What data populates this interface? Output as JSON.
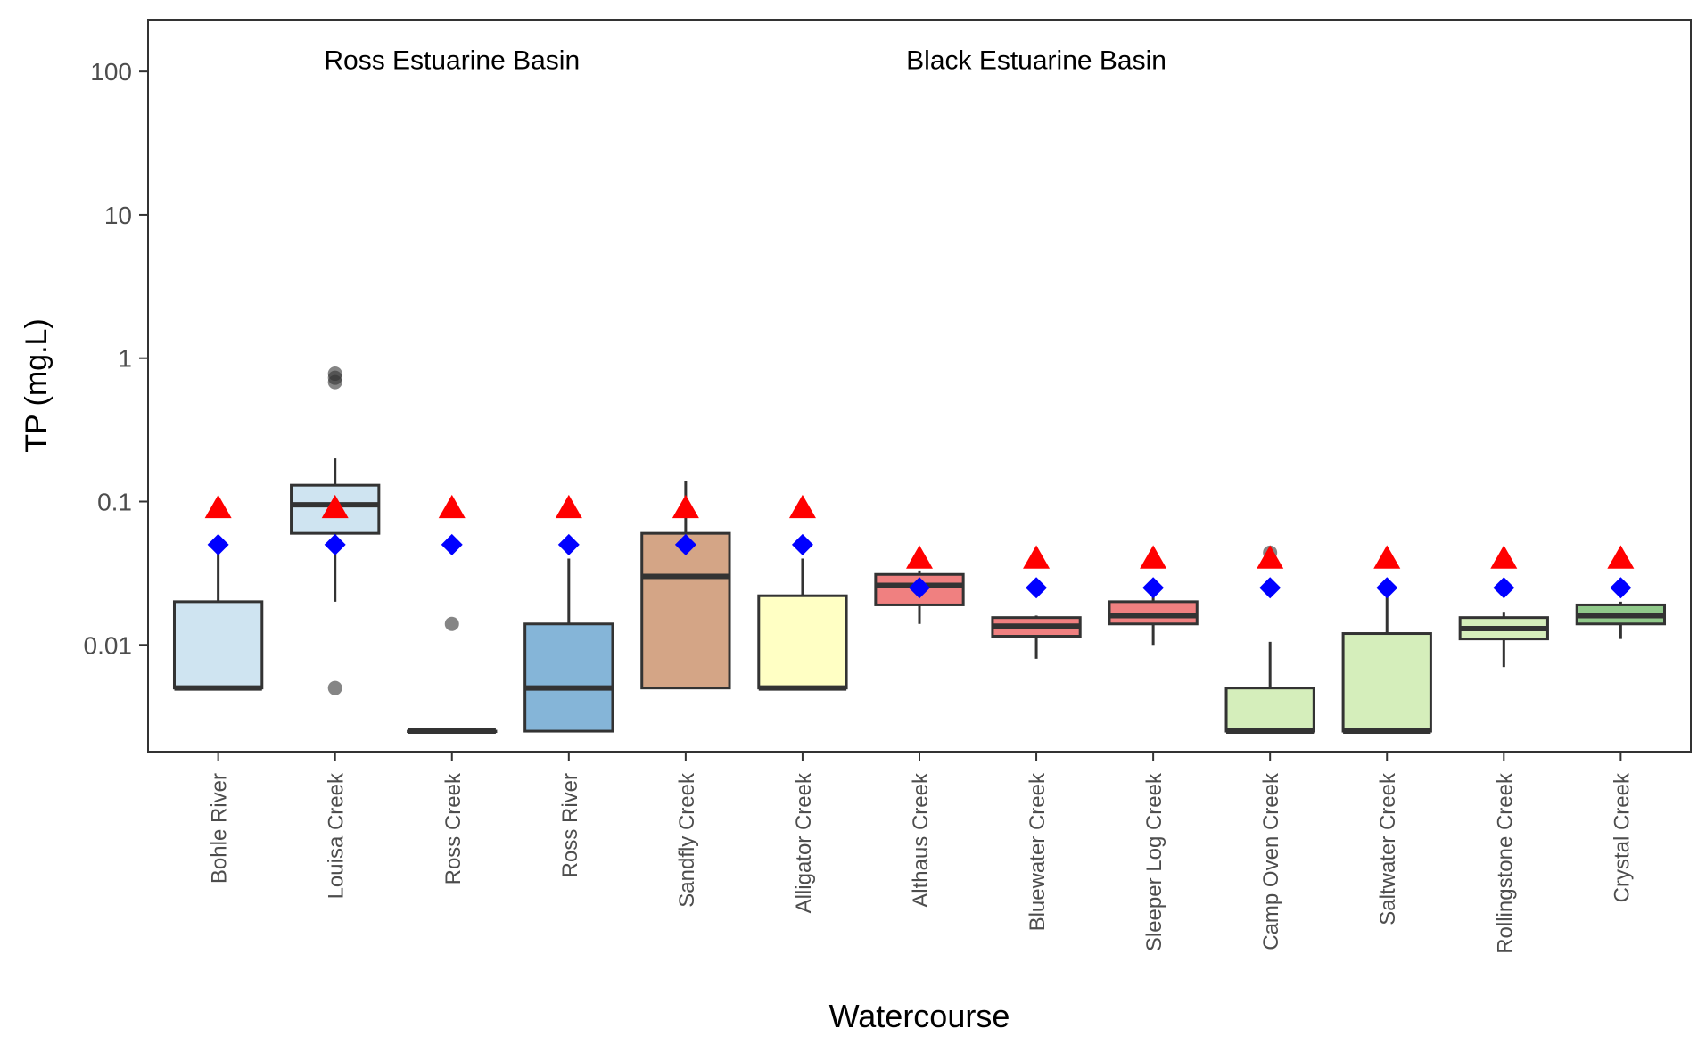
{
  "chart_data": {
    "type": "box",
    "xlabel": "Watercourse",
    "ylabel": "TP (mg.L)",
    "yscale": "log10",
    "ylim": [
      0.0018,
      230
    ],
    "yticks": [
      0.01,
      0.1,
      1,
      10,
      100
    ],
    "ytick_labels": [
      "0.01",
      "0.1",
      "1",
      "10",
      "100"
    ],
    "annotations": [
      {
        "text": "Ross Estuarine Basin",
        "x": "Ross Creek",
        "y": 120
      },
      {
        "text": "Black Estuarine Basin",
        "x": "Bluewater Creek",
        "y": 120
      }
    ],
    "marker_legend": {
      "triangle_color": "#ff0000",
      "diamond_color": "#0000ff"
    },
    "categories": [
      "Bohle River",
      "Louisa Creek",
      "Ross Creek",
      "Ross River",
      "Sandfly Creek",
      "Alligator Creek",
      "Althaus Creek",
      "Bluewater Creek",
      "Sleeper Log Creek",
      "Camp Oven Creek",
      "Saltwater Creek",
      "Rollingstone Creek",
      "Crystal Creek"
    ],
    "boxes": [
      {
        "name": "Bohle River",
        "fill": "#cfe4f1",
        "whisker_low": 0.005,
        "q1": 0.005,
        "median": 0.005,
        "q3": 0.02,
        "whisker_high": 0.05,
        "outliers": [],
        "triangle": 0.09,
        "diamond": 0.05
      },
      {
        "name": "Louisa Creek",
        "fill": "#cfe4f1",
        "whisker_low": 0.02,
        "q1": 0.06,
        "median": 0.095,
        "q3": 0.13,
        "whisker_high": 0.2,
        "outliers": [
          0.005,
          0.68,
          0.73,
          0.78
        ],
        "triangle": 0.09,
        "diamond": 0.05
      },
      {
        "name": "Ross Creek",
        "fill": "#d0e2f2",
        "whisker_low": 0.0025,
        "q1": 0.0025,
        "median": 0.0025,
        "q3": 0.0025,
        "whisker_high": 0.0025,
        "outliers": [
          0.014
        ],
        "triangle": 0.09,
        "diamond": 0.05
      },
      {
        "name": "Ross River",
        "fill": "#85b5d8",
        "whisker_low": 0.0025,
        "q1": 0.0025,
        "median": 0.005,
        "q3": 0.014,
        "whisker_high": 0.04,
        "outliers": [],
        "triangle": 0.09,
        "diamond": 0.05
      },
      {
        "name": "Sandfly Creek",
        "fill": "#d4a586",
        "whisker_low": 0.005,
        "q1": 0.005,
        "median": 0.03,
        "q3": 0.06,
        "whisker_high": 0.14,
        "outliers": [],
        "triangle": 0.09,
        "diamond": 0.05
      },
      {
        "name": "Alligator Creek",
        "fill": "#ffffc4",
        "whisker_low": 0.005,
        "q1": 0.005,
        "median": 0.005,
        "q3": 0.022,
        "whisker_high": 0.04,
        "outliers": [],
        "triangle": 0.09,
        "diamond": 0.05
      },
      {
        "name": "Althaus Creek",
        "fill": "#f08080",
        "whisker_low": 0.014,
        "q1": 0.019,
        "median": 0.026,
        "q3": 0.031,
        "whisker_high": 0.033,
        "outliers": [],
        "triangle": 0.04,
        "diamond": 0.025
      },
      {
        "name": "Bluewater Creek",
        "fill": "#f08080",
        "whisker_low": 0.008,
        "q1": 0.0115,
        "median": 0.0135,
        "q3": 0.0155,
        "whisker_high": 0.016,
        "outliers": [],
        "triangle": 0.04,
        "diamond": 0.025
      },
      {
        "name": "Sleeper Log Creek",
        "fill": "#f08080",
        "whisker_low": 0.01,
        "q1": 0.014,
        "median": 0.016,
        "q3": 0.02,
        "whisker_high": 0.022,
        "outliers": [],
        "triangle": 0.04,
        "diamond": 0.025
      },
      {
        "name": "Camp Oven Creek",
        "fill": "#d5eebb",
        "whisker_low": 0.0025,
        "q1": 0.0025,
        "median": 0.0025,
        "q3": 0.005,
        "whisker_high": 0.0105,
        "outliers": [
          0.044
        ],
        "triangle": 0.04,
        "diamond": 0.025
      },
      {
        "name": "Saltwater Creek",
        "fill": "#d5eebb",
        "whisker_low": 0.0025,
        "q1": 0.0025,
        "median": 0.0025,
        "q3": 0.012,
        "whisker_high": 0.025,
        "outliers": [],
        "triangle": 0.04,
        "diamond": 0.025
      },
      {
        "name": "Rollingstone Creek",
        "fill": "#d5eebb",
        "whisker_low": 0.007,
        "q1": 0.011,
        "median": 0.013,
        "q3": 0.0155,
        "whisker_high": 0.017,
        "outliers": [],
        "triangle": 0.04,
        "diamond": 0.025
      },
      {
        "name": "Crystal Creek",
        "fill": "#90c98a",
        "whisker_low": 0.011,
        "q1": 0.014,
        "median": 0.016,
        "q3": 0.019,
        "whisker_high": 0.02,
        "outliers": [],
        "triangle": 0.04,
        "diamond": 0.025
      }
    ]
  }
}
